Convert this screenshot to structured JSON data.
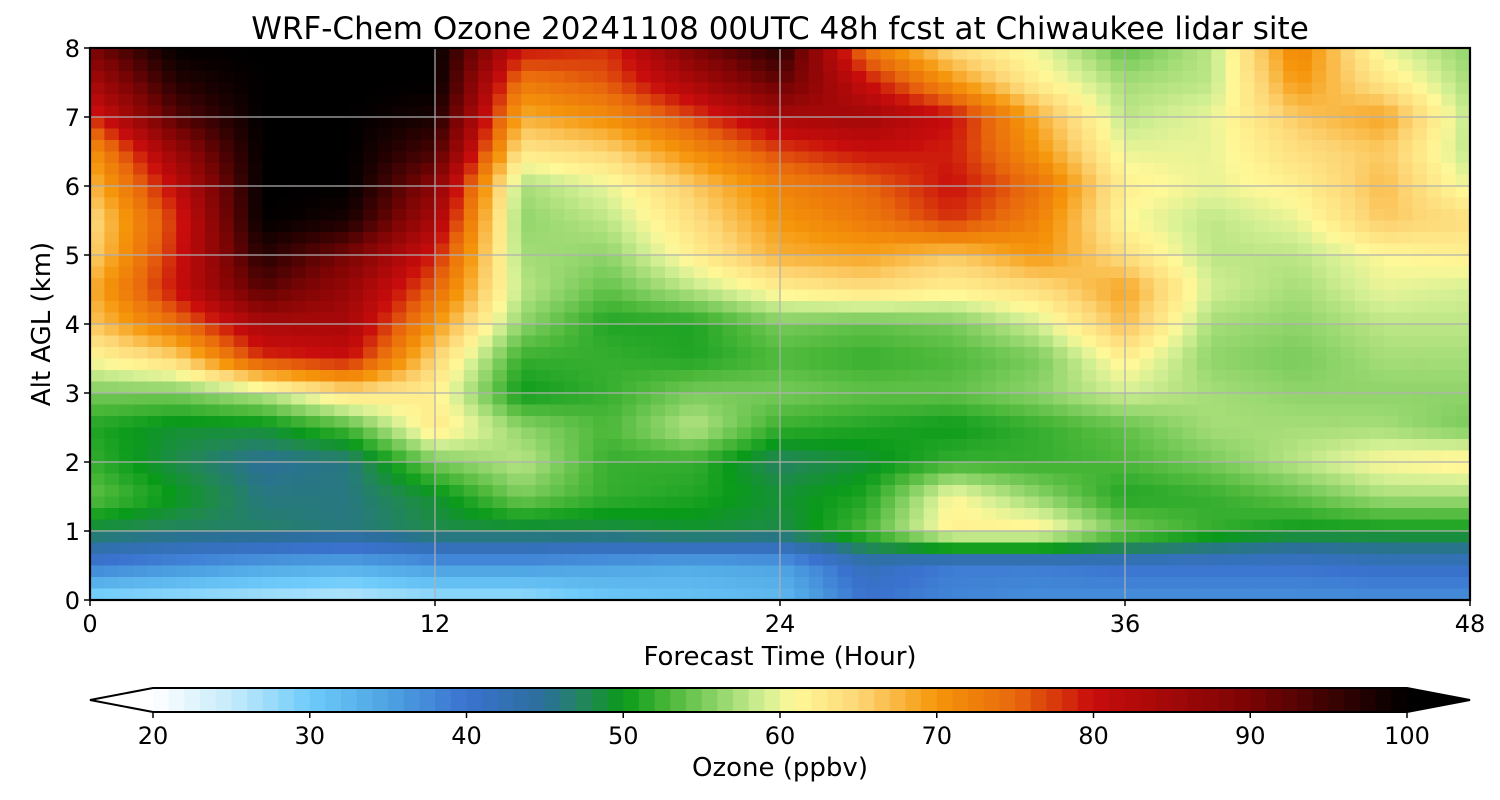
{
  "chart_data": {
    "type": "heatmap",
    "title": "WRF-Chem Ozone  20241108 00UTC 48h fcst at Chiwaukee lidar site",
    "xlabel": "Forecast Time (Hour)",
    "ylabel": "Alt AGL (km)",
    "xlim": [
      0,
      48
    ],
    "ylim": [
      0,
      8
    ],
    "xticks": [
      "0",
      "12",
      "24",
      "36",
      "48"
    ],
    "yticks": [
      "0",
      "1",
      "2",
      "3",
      "4",
      "5",
      "6",
      "7",
      "8"
    ],
    "grid": true,
    "x": [
      0,
      3,
      6,
      9,
      12,
      15,
      18,
      21,
      24,
      27,
      30,
      33,
      36,
      39,
      42,
      45,
      48
    ],
    "y": [
      0,
      0.5,
      1,
      1.5,
      2,
      2.5,
      3,
      3.5,
      4,
      4.5,
      5,
      5.5,
      6,
      6.5,
      7,
      7.5,
      8
    ],
    "z": [
      [
        28,
        27,
        26,
        25,
        27,
        27,
        30,
        31,
        32,
        40,
        38,
        37,
        37,
        37,
        37,
        37,
        37
      ],
      [
        39,
        37,
        35,
        34,
        36,
        36,
        35,
        34,
        35,
        42,
        39,
        39,
        40,
        40,
        40,
        41,
        41
      ],
      [
        48,
        47,
        47,
        46,
        48,
        48,
        48,
        49,
        48,
        53,
        62,
        62,
        55,
        52,
        50,
        50,
        50
      ],
      [
        54,
        50,
        46,
        46,
        49,
        55,
        52,
        51,
        49,
        51,
        61,
        56,
        51,
        52,
        54,
        57,
        57
      ],
      [
        52,
        48,
        45,
        46,
        55,
        58,
        52,
        52,
        47,
        49,
        52,
        52,
        53,
        55,
        58,
        61,
        62
      ],
      [
        51,
        49,
        49,
        53,
        63,
        56,
        53,
        58,
        52,
        51,
        50,
        52,
        54,
        57,
        57,
        57,
        55
      ],
      [
        55,
        55,
        58,
        64,
        62,
        50,
        52,
        55,
        55,
        54,
        54,
        56,
        59,
        57,
        56,
        56,
        56
      ],
      [
        61,
        65,
        78,
        80,
        65,
        52,
        52,
        51,
        53,
        52,
        53,
        55,
        62,
        56,
        55,
        57,
        57
      ],
      [
        66,
        74,
        84,
        84,
        70,
        56,
        51,
        51,
        55,
        54,
        55,
        59,
        67,
        57,
        56,
        58,
        58
      ],
      [
        68,
        80,
        93,
        86,
        75,
        58,
        54,
        58,
        62,
        64,
        62,
        64,
        69,
        59,
        57,
        60,
        59
      ],
      [
        65,
        79,
        97,
        90,
        79,
        57,
        56,
        62,
        68,
        69,
        66,
        70,
        64,
        58,
        58,
        61,
        62
      ],
      [
        64,
        78,
        100,
        98,
        84,
        56,
        58,
        64,
        70,
        73,
        78,
        72,
        61,
        58,
        60,
        66,
        64
      ],
      [
        67,
        81,
        100,
        100,
        88,
        57,
        60,
        66,
        72,
        75,
        80,
        74,
        62,
        60,
        62,
        67,
        60
      ],
      [
        70,
        86,
        100,
        100,
        94,
        63,
        65,
        71,
        77,
        80,
        79,
        70,
        60,
        60,
        64,
        66,
        58
      ],
      [
        78,
        93,
        100,
        100,
        98,
        68,
        71,
        77,
        84,
        85,
        80,
        68,
        58,
        60,
        66,
        69,
        58
      ],
      [
        84,
        97,
        100,
        100,
        100,
        73,
        76,
        84,
        92,
        80,
        70,
        62,
        57,
        58,
        70,
        63,
        57
      ],
      [
        90,
        100,
        100,
        100,
        100,
        80,
        78,
        90,
        97,
        73,
        64,
        60,
        54,
        58,
        72,
        60,
        56
      ]
    ],
    "colorbar": {
      "label": "Ozone  (ppbv)",
      "min": 20,
      "max": 100,
      "ticks": [
        "20",
        "30",
        "40",
        "50",
        "60",
        "70",
        "80",
        "90",
        "100"
      ],
      "extend": "both"
    }
  },
  "palette": {
    "20": "#ffffff",
    "25": "#c5ebfb",
    "30": "#6ecbfa",
    "35": "#4da3e2",
    "40": "#3a72cf",
    "45": "#2b6f9a",
    "48": "#1f8a4c",
    "50": "#0a9a1a",
    "53": "#4cb83a",
    "56": "#8fd46a",
    "59": "#d3ef94",
    "61": "#fff898",
    "65": "#fdd676",
    "70": "#f5950a",
    "75": "#e8680c",
    "80": "#c80c0c",
    "90": "#7a0404",
    "100": "#000000"
  }
}
